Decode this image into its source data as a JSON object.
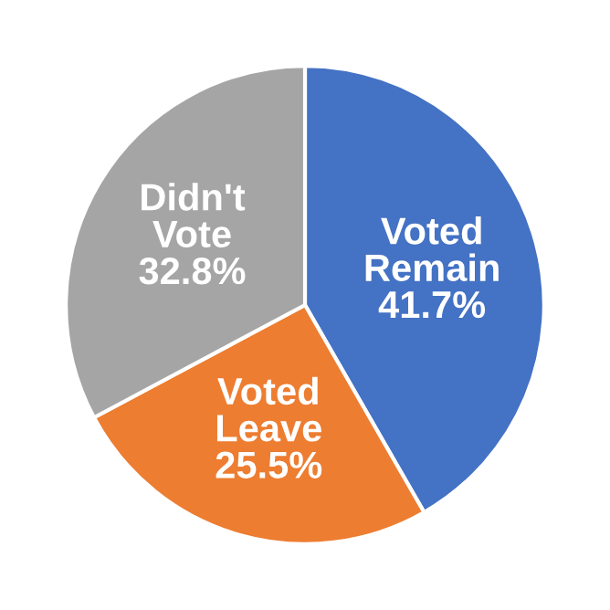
{
  "chart_data": {
    "type": "pie",
    "categories": [
      "Voted Remain",
      "Voted Leave",
      "Didn't Vote"
    ],
    "values": [
      41.7,
      25.5,
      32.8
    ],
    "colors": [
      "#4472c4",
      "#ed7d31",
      "#a5a5a5"
    ],
    "value_labels": [
      "41.7%",
      "25.5%",
      "32.8%"
    ],
    "legend": false
  }
}
